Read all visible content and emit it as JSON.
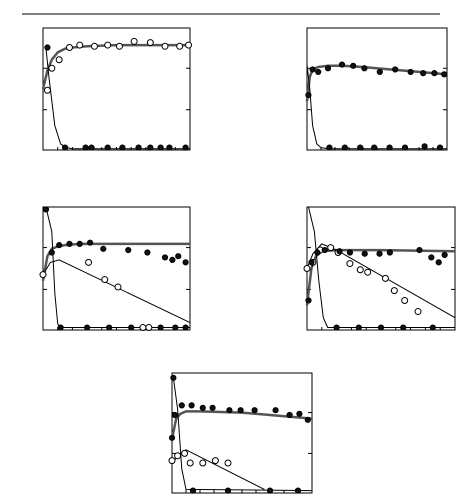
{
  "chart_data": [
    {
      "type": "scatter",
      "xlim": [
        0,
        100
      ],
      "ylim": [
        0,
        100
      ],
      "xticks": [
        0,
        10,
        20,
        30,
        40,
        50,
        60,
        70,
        80,
        90,
        100
      ],
      "yticks": [
        0,
        33,
        67,
        100
      ],
      "series": [
        {
          "style": "thick",
          "x": [
            0,
            3,
            6,
            10,
            15,
            20,
            30,
            50,
            100
          ],
          "values": [
            50,
            65,
            74,
            80,
            83,
            84,
            85,
            86,
            86
          ]
        },
        {
          "style": "thin",
          "x": [
            2,
            4,
            8,
            12,
            16,
            20,
            100
          ],
          "values": [
            84,
            60,
            20,
            5,
            2,
            1,
            1
          ]
        },
        {
          "style": "open",
          "x": [
            3,
            6,
            11,
            18,
            25,
            35,
            44,
            52,
            62,
            73,
            83,
            93,
            99
          ],
          "values": [
            49,
            67,
            74,
            84,
            86,
            85,
            86,
            85,
            89,
            88,
            85,
            85,
            86
          ]
        },
        {
          "style": "filled",
          "x": [
            3,
            15,
            29,
            33,
            44,
            54,
            65,
            73,
            80,
            86,
            97
          ],
          "values": [
            84,
            2,
            2,
            2,
            2,
            2,
            2,
            2,
            2,
            2,
            2
          ]
        }
      ]
    },
    {
      "type": "scatter",
      "xlim": [
        0,
        100
      ],
      "ylim": [
        0,
        100
      ],
      "xticks": [
        0,
        10,
        20,
        30,
        40,
        50,
        60,
        70,
        80,
        90,
        100
      ],
      "yticks": [
        0,
        33,
        67,
        100
      ],
      "series": [
        {
          "style": "thick",
          "x": [
            0,
            2,
            4,
            8,
            15,
            25,
            40,
            60,
            80,
            100
          ],
          "values": [
            40,
            60,
            66,
            68,
            69,
            69,
            68,
            66,
            64,
            62
          ]
        },
        {
          "style": "thin",
          "x": [
            0,
            2,
            4,
            7,
            10,
            15,
            100
          ],
          "values": [
            70,
            50,
            20,
            5,
            2,
            1,
            1
          ]
        },
        {
          "style": "filled",
          "x": [
            1,
            4,
            8,
            15,
            25,
            33,
            41,
            52,
            63,
            74,
            83,
            91,
            98,
            16,
            27,
            38,
            48,
            59,
            70,
            84,
            95
          ],
          "values": [
            45,
            66,
            64,
            67,
            70,
            69,
            67,
            64,
            66,
            64,
            63,
            63,
            62,
            2,
            2,
            2,
            2,
            2,
            2,
            3,
            2
          ]
        }
      ]
    },
    {
      "type": "scatter",
      "xlim": [
        0,
        100
      ],
      "ylim": [
        0,
        100
      ],
      "xticks": [
        0,
        10,
        20,
        30,
        40,
        50,
        60,
        70,
        80,
        90,
        100
      ],
      "yticks": [
        0,
        33,
        67,
        100
      ],
      "series": [
        {
          "style": "thick",
          "x": [
            0,
            3,
            6,
            10,
            15,
            25,
            50,
            100
          ],
          "values": [
            40,
            60,
            66,
            68,
            69,
            70,
            70,
            70
          ]
        },
        {
          "style": "thin",
          "x": [
            0,
            5,
            11,
            100
          ],
          "values": [
            45,
            55,
            57,
            6
          ]
        },
        {
          "style": "thin",
          "x": [
            2,
            6,
            8,
            10,
            12,
            100
          ],
          "values": [
            100,
            80,
            30,
            5,
            2,
            2
          ]
        },
        {
          "style": "open",
          "x": [
            0,
            31,
            42,
            51,
            68,
            72
          ],
          "values": [
            45,
            55,
            41,
            35,
            2,
            2
          ]
        },
        {
          "style": "filled",
          "x": [
            2,
            6,
            11,
            18,
            25,
            32,
            41,
            58,
            71,
            83,
            88,
            92,
            97,
            12,
            30,
            45,
            60,
            80,
            90,
            97
          ],
          "values": [
            98,
            63,
            69,
            70,
            70,
            71,
            66,
            65,
            63,
            59,
            57,
            60,
            55,
            2,
            2,
            2,
            2,
            2,
            2,
            2
          ]
        }
      ]
    },
    {
      "type": "scatter",
      "xlim": [
        0,
        100
      ],
      "ylim": [
        0,
        100
      ],
      "xticks": [
        0,
        10,
        20,
        30,
        40,
        50,
        60,
        70,
        80,
        90,
        100
      ],
      "yticks": [
        0,
        33,
        67,
        100
      ],
      "series": [
        {
          "style": "thick",
          "x": [
            0,
            3,
            6,
            10,
            20,
            50,
            100
          ],
          "values": [
            20,
            50,
            60,
            64,
            65,
            65,
            64
          ]
        },
        {
          "style": "thin",
          "x": [
            0,
            4,
            10,
            20,
            100
          ],
          "values": [
            50,
            62,
            70,
            65,
            10
          ]
        },
        {
          "style": "thin",
          "x": [
            1,
            5,
            8,
            11,
            14,
            100
          ],
          "values": [
            100,
            80,
            40,
            10,
            2,
            2
          ]
        },
        {
          "style": "open",
          "x": [
            0,
            4,
            9,
            16,
            21,
            29,
            36,
            41,
            53,
            59,
            66,
            75
          ],
          "values": [
            50,
            55,
            65,
            67,
            63,
            54,
            49,
            47,
            42,
            32,
            24,
            15
          ]
        },
        {
          "style": "filled",
          "x": [
            1,
            3,
            7,
            12,
            22,
            29,
            39,
            49,
            56,
            76,
            84,
            89,
            93,
            20,
            35,
            50,
            65,
            85
          ],
          "values": [
            24,
            55,
            63,
            65,
            64,
            63,
            62,
            62,
            63,
            65,
            59,
            55,
            61,
            2,
            2,
            2,
            2,
            2
          ]
        }
      ]
    },
    {
      "type": "scatter",
      "xlim": [
        0,
        100
      ],
      "ylim": [
        0,
        100
      ],
      "xticks": [
        0,
        10,
        20,
        30,
        40,
        50,
        60,
        70,
        80,
        90,
        100
      ],
      "yticks": [
        0,
        33,
        67,
        100
      ],
      "series": [
        {
          "style": "thick",
          "x": [
            0,
            3,
            6,
            10,
            20,
            50,
            100
          ],
          "values": [
            45,
            62,
            66,
            68,
            68,
            67,
            62
          ]
        },
        {
          "style": "thin",
          "x": [
            0,
            5,
            10,
            66
          ],
          "values": [
            25,
            32,
            36,
            3
          ]
        },
        {
          "style": "thin",
          "x": [
            1,
            4,
            7,
            10,
            100
          ],
          "values": [
            96,
            70,
            20,
            3,
            2
          ]
        },
        {
          "style": "open",
          "x": [
            0,
            4,
            9,
            13,
            22,
            31,
            40
          ],
          "values": [
            27,
            31,
            33,
            25,
            25,
            27,
            25
          ]
        },
        {
          "style": "filled",
          "x": [
            1,
            2,
            7,
            14,
            22,
            29,
            41,
            49,
            59,
            74,
            84,
            91,
            97,
            0,
            15,
            40,
            70,
            90
          ],
          "values": [
            96,
            65,
            73,
            73,
            71,
            71,
            69,
            69,
            69,
            69,
            65,
            66,
            61,
            46,
            2,
            2,
            2,
            2
          ]
        }
      ]
    }
  ]
}
